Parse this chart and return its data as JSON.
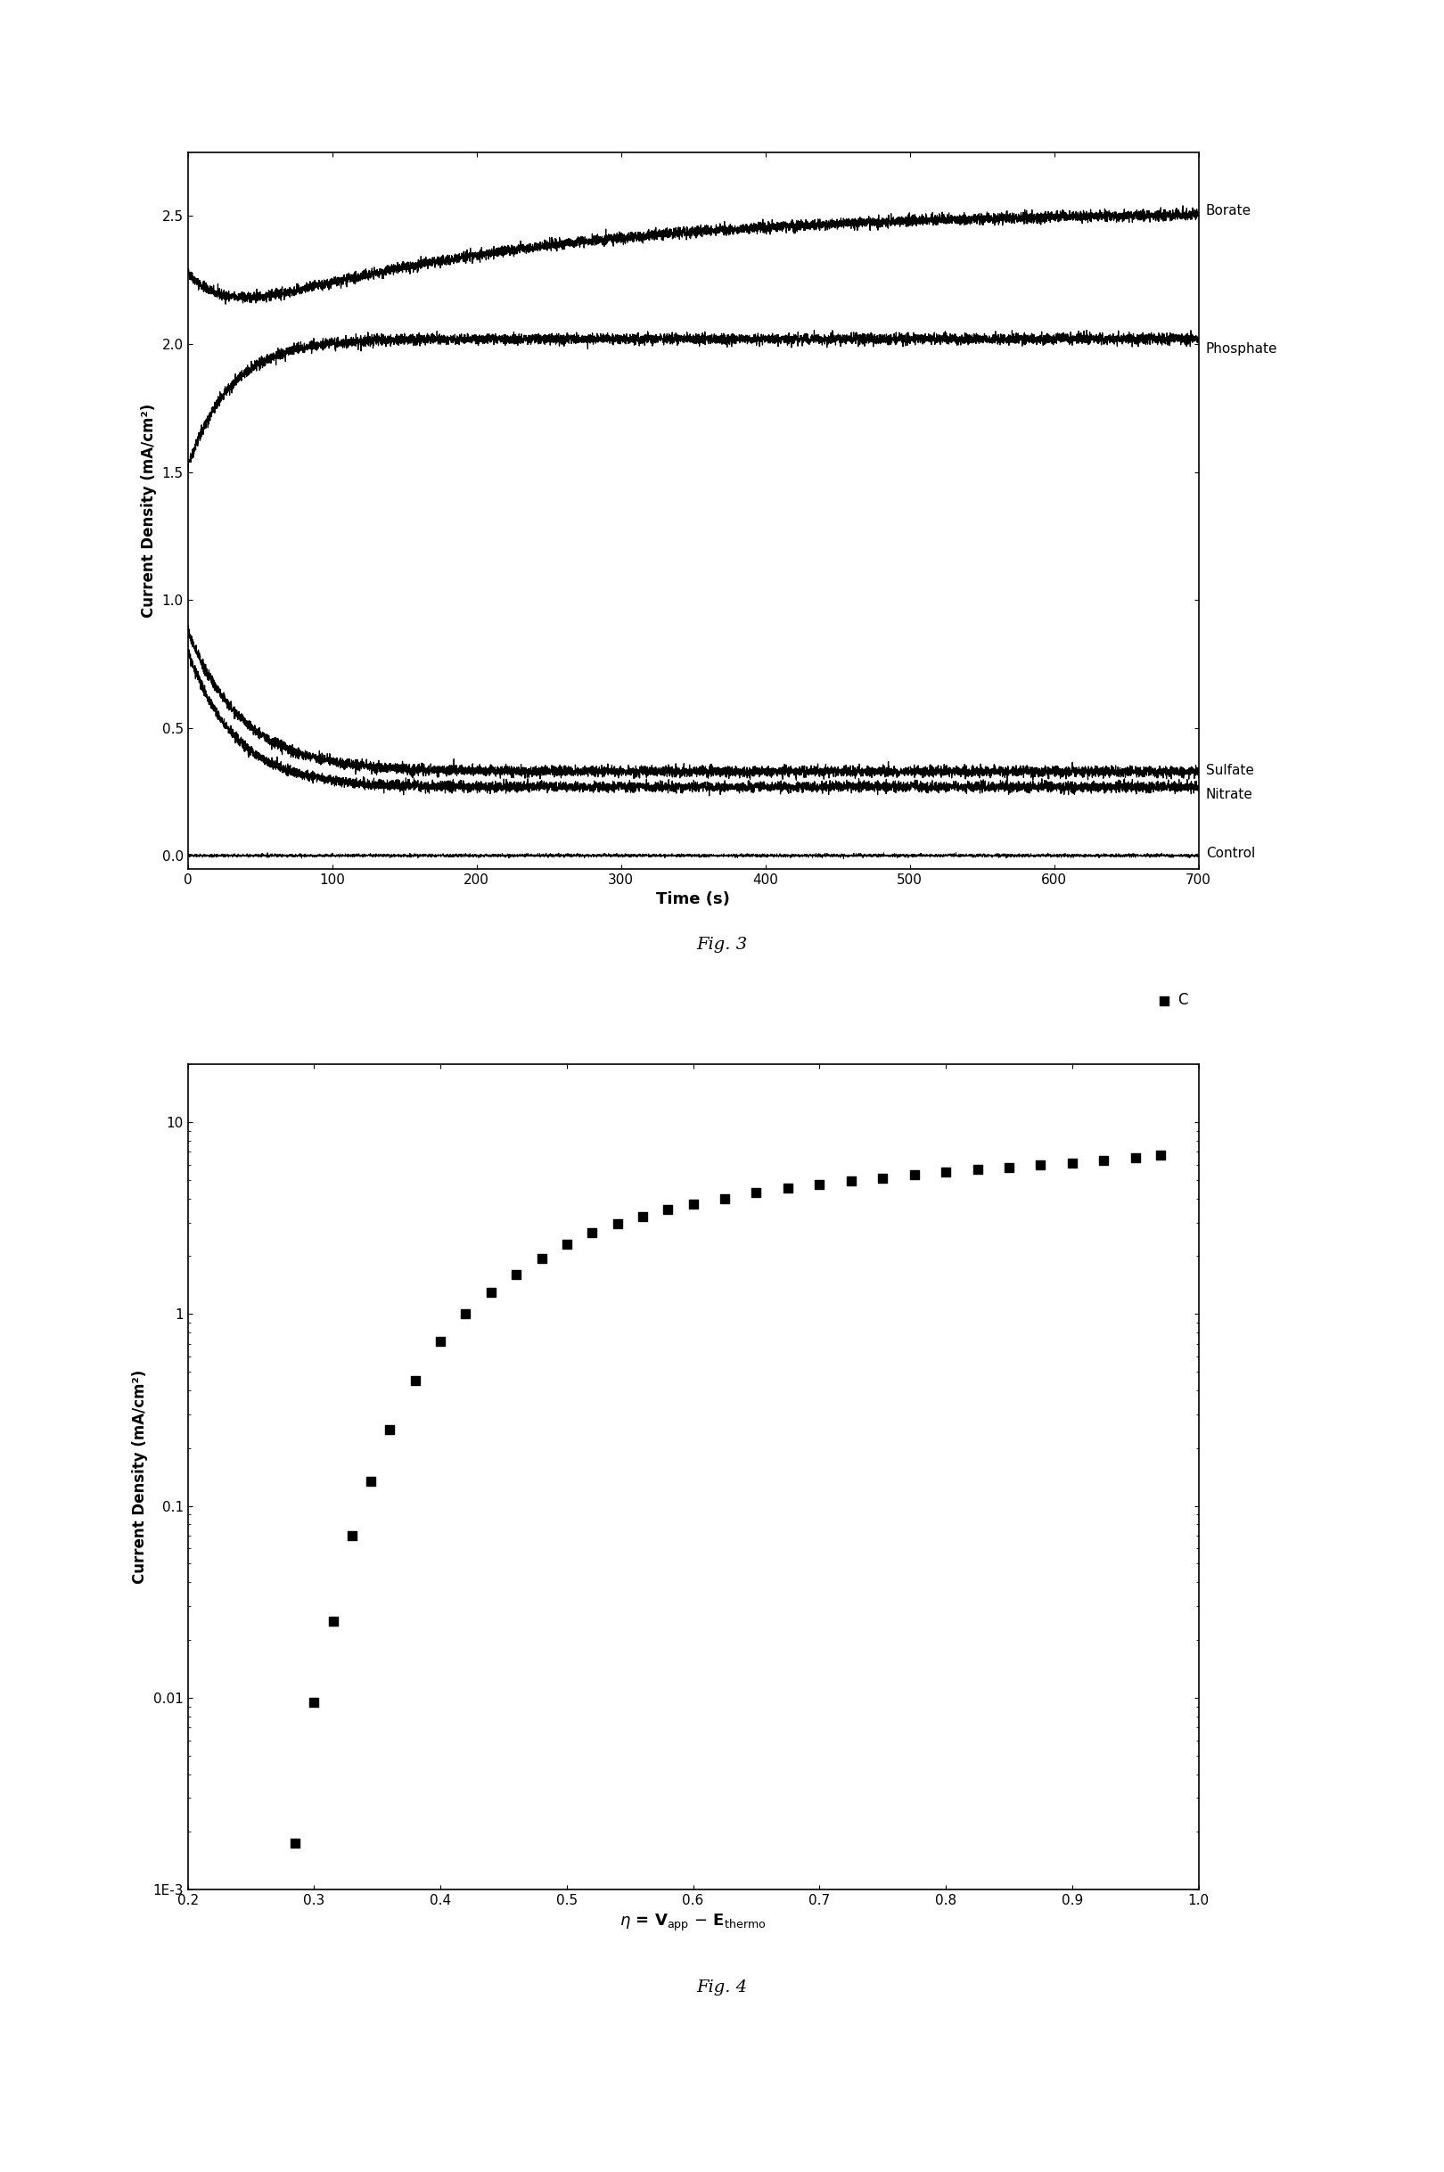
{
  "fig3": {
    "xlabel": "Time (s)",
    "ylabel": "Current Density (mA/cm²)",
    "xlim": [
      0,
      700
    ],
    "ylim": [
      -0.05,
      2.75
    ],
    "yticks": [
      0.0,
      0.5,
      1.0,
      1.5,
      2.0,
      2.5
    ],
    "xticks": [
      0,
      100,
      200,
      300,
      400,
      500,
      600,
      700
    ],
    "caption": "Fig. 3"
  },
  "fig4": {
    "ylabel": "Current Density (mA/cm²)",
    "xlim": [
      0.2,
      1.0
    ],
    "ylim_log": [
      0.001,
      20
    ],
    "xticks": [
      0.2,
      0.3,
      0.4,
      0.5,
      0.6,
      0.7,
      0.8,
      0.9,
      1.0
    ],
    "legend_label": "C",
    "caption": "Fig. 4",
    "x_data": [
      0.285,
      0.3,
      0.315,
      0.33,
      0.345,
      0.36,
      0.38,
      0.4,
      0.42,
      0.44,
      0.46,
      0.48,
      0.5,
      0.52,
      0.54,
      0.56,
      0.58,
      0.6,
      0.625,
      0.65,
      0.675,
      0.7,
      0.725,
      0.75,
      0.775,
      0.8,
      0.825,
      0.85,
      0.875,
      0.9,
      0.925,
      0.95,
      0.97
    ],
    "y_data": [
      0.00175,
      0.0095,
      0.025,
      0.07,
      0.135,
      0.25,
      0.45,
      0.72,
      1.0,
      1.3,
      1.6,
      1.95,
      2.3,
      2.65,
      2.95,
      3.2,
      3.5,
      3.75,
      4.0,
      4.3,
      4.55,
      4.75,
      4.95,
      5.1,
      5.3,
      5.5,
      5.65,
      5.8,
      5.95,
      6.1,
      6.3,
      6.5,
      6.7
    ]
  }
}
